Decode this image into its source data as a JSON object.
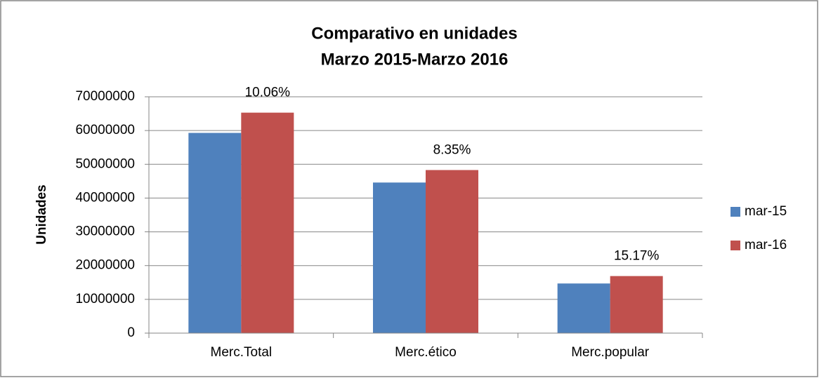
{
  "chart_data": {
    "type": "bar",
    "title": "Comparativo en unidades",
    "subtitle": "Marzo 2015-Marzo 2016",
    "y_label": "Unidades",
    "categories": [
      "Merc.Total",
      "Merc.ético",
      "Merc.popular"
    ],
    "series": [
      {
        "name": "mar-15",
        "color": "#4f81bd",
        "values": [
          59300000,
          44600000,
          14700000
        ]
      },
      {
        "name": "mar-16",
        "color": "#c0504d",
        "values": [
          65300000,
          48300000,
          16900000
        ]
      }
    ],
    "annotations": [
      "10.06%",
      "8.35%",
      "15.17%"
    ],
    "ylim": [
      0,
      70000000
    ],
    "yticks": [
      0,
      10000000,
      20000000,
      30000000,
      40000000,
      50000000,
      60000000,
      70000000
    ],
    "grid": true,
    "legend": "right"
  }
}
